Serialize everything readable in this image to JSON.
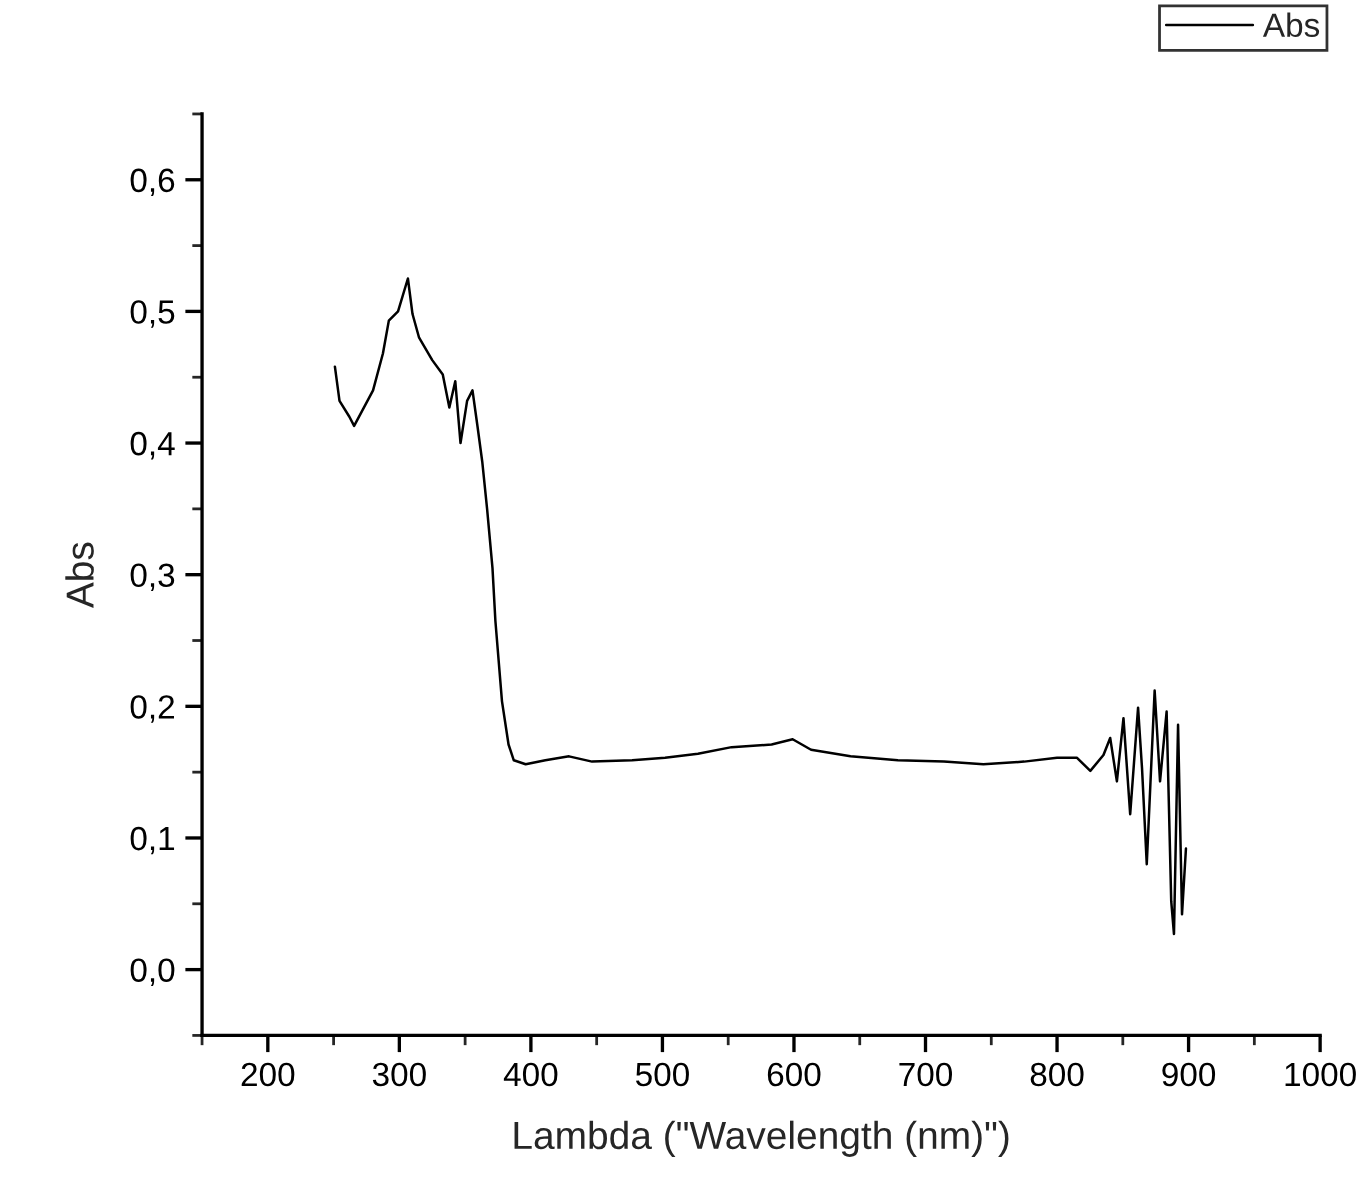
{
  "chart_data": {
    "type": "line",
    "xlabel": "Lambda (\"Wavelength (nm)\")",
    "ylabel": "Abs",
    "xlim": [
      150,
      1000
    ],
    "ylim": [
      -0.05,
      0.65
    ],
    "xticks": [
      {
        "value": 150,
        "label": null
      },
      200,
      {
        "value": 250,
        "label": null
      },
      300,
      {
        "value": 350,
        "label": null
      },
      400,
      {
        "value": 450,
        "label": null
      },
      500,
      {
        "value": 550,
        "label": null
      },
      600,
      {
        "value": 650,
        "label": null
      },
      700,
      {
        "value": 750,
        "label": null
      },
      800,
      {
        "value": 850,
        "label": null
      },
      900,
      {
        "value": 950,
        "label": null
      },
      1000
    ],
    "yticks": [
      {
        "value": -0.05,
        "label": null
      },
      {
        "value": 0.0,
        "label": "0,0"
      },
      {
        "value": 0.05,
        "label": null
      },
      {
        "value": 0.1,
        "label": "0,1"
      },
      {
        "value": 0.15,
        "label": null
      },
      {
        "value": 0.2,
        "label": "0,2"
      },
      {
        "value": 0.25,
        "label": null
      },
      {
        "value": 0.3,
        "label": "0,3"
      },
      {
        "value": 0.35,
        "label": null
      },
      {
        "value": 0.4,
        "label": "0,4"
      },
      {
        "value": 0.45,
        "label": null
      },
      {
        "value": 0.5,
        "label": "0,5"
      },
      {
        "value": 0.55,
        "label": null
      },
      {
        "value": 0.6,
        "label": "0,6"
      },
      {
        "value": 0.65,
        "label": null
      }
    ],
    "grid": false,
    "legend": "top right",
    "marker": "none",
    "line_style": "solid",
    "series": [
      {
        "name": "Abs",
        "color": "#000000",
        "x": [
          251,
          254.5,
          262,
          265.6,
          272,
          280,
          287.5,
          292,
          299,
          306.5,
          310,
          315,
          325,
          333,
          338,
          342.5,
          346.5,
          351.5,
          355.6,
          359.5,
          363,
          366.7,
          370.8,
          373,
          378,
          383,
          387,
          396,
          411,
          429,
          446.5,
          477,
          502,
          527,
          552.6,
          583,
          599,
          613,
          643,
          679,
          714,
          744,
          775,
          800,
          815,
          825.3,
          835.3,
          840.4,
          845.5,
          850.5,
          855.6,
          861.6,
          864.6,
          868.2,
          874.2,
          878.3,
          883.3,
          886.8,
          888.9,
          892,
          895,
          898
        ],
        "values": [
          0.458,
          0.432,
          0.42,
          0.413,
          0.425,
          0.44,
          0.468,
          0.493,
          0.5,
          0.525,
          0.498,
          0.48,
          0.463,
          0.452,
          0.427,
          0.447,
          0.4,
          0.432,
          0.44,
          0.412,
          0.386,
          0.35,
          0.305,
          0.265,
          0.204,
          0.171,
          0.159,
          0.156,
          0.159,
          0.162,
          0.158,
          0.159,
          0.161,
          0.164,
          0.169,
          0.171,
          0.175,
          0.167,
          0.162,
          0.159,
          0.158,
          0.156,
          0.158,
          0.161,
          0.161,
          0.151,
          0.163,
          0.176,
          0.143,
          0.191,
          0.118,
          0.199,
          0.153,
          0.08,
          0.212,
          0.143,
          0.196,
          0.052,
          0.027,
          0.186,
          0.042,
          0.092
        ]
      }
    ]
  }
}
